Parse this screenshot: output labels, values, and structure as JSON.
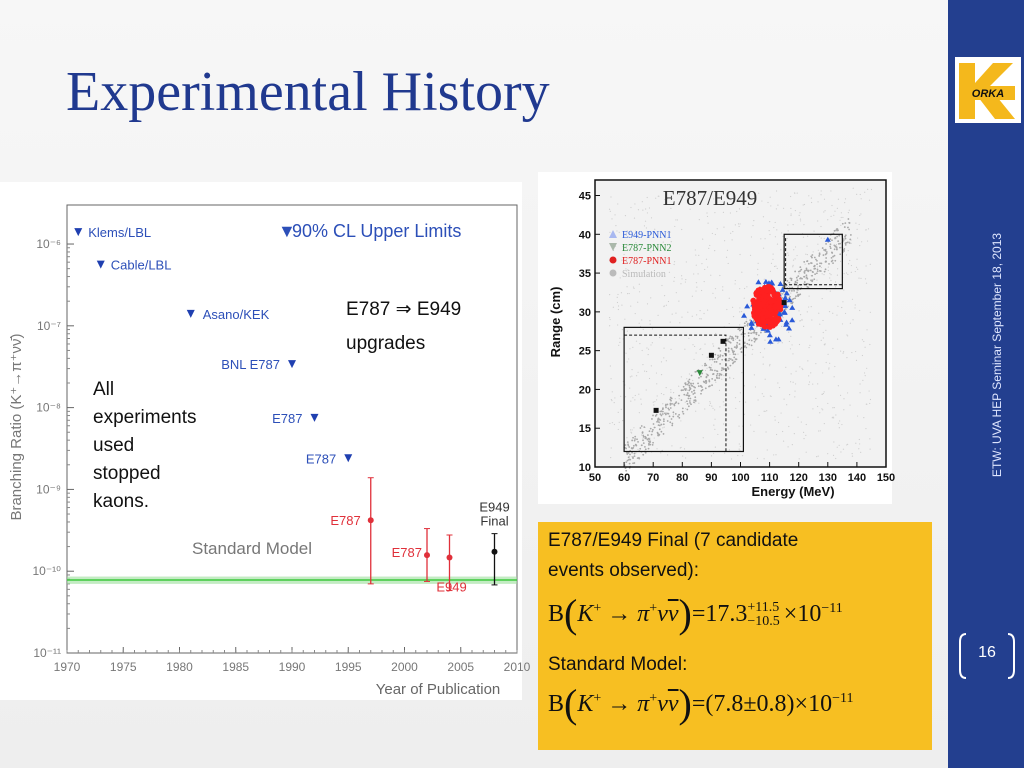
{
  "slide": {
    "title": "Experimental History",
    "sidebar_text": "ETW: UVA HEP Seminar     September 18, 2013",
    "page_number": "16",
    "logo_text": "ORKA"
  },
  "left_plot": {
    "ylabel": "Branching Ratio (K⁺→π⁺νν̄)",
    "xlabel": "Year of Publication",
    "legend_label": "90% CL Upper Limits",
    "sm_label": "Standard Model",
    "upgrade_line1": "E787 ⇒ E949",
    "upgrade_line2": "upgrades",
    "note_lines": [
      "All",
      "experiments",
      "used",
      "stopped",
      "kaons."
    ],
    "upper_limit_labels": [
      "Klems/LBL",
      "Cable/LBL",
      "Asano/KEK",
      "BNL E787",
      "E787",
      "E787"
    ],
    "measurement_labels": [
      "E787",
      "E787",
      "E949",
      "E949",
      "Final"
    ],
    "x_ticks": [
      "1970",
      "1975",
      "1980",
      "1985",
      "1990",
      "1995",
      "2000",
      "2005",
      "2010"
    ],
    "y_ticks": [
      "10⁻⁶",
      "10⁻⁷",
      "10⁻⁸",
      "10⁻⁹",
      "10⁻¹⁰",
      "10⁻¹¹"
    ]
  },
  "right_plot": {
    "title": "E787/E949",
    "xlabel": "Energy (MeV)",
    "ylabel": "Range (cm)",
    "legend": [
      "E949-PNN1",
      "E787-PNN2",
      "E787-PNN1",
      "Simulation"
    ],
    "x_ticks": [
      "50",
      "60",
      "70",
      "80",
      "90",
      "100",
      "110",
      "120",
      "130",
      "140",
      "150"
    ],
    "y_ticks": [
      "10",
      "15",
      "20",
      "25",
      "30",
      "35",
      "40",
      "45"
    ]
  },
  "result": {
    "line1": "E787/E949 Final (7 candidate",
    "line2": "events observed):",
    "eq1_value": "17.3",
    "eq1_up": "+11.5",
    "eq1_down": "−10.5",
    "eq1_exp": "×10",
    "eq1_pow": "−11",
    "sm_title": "Standard Model:",
    "eq2_value": "(7.8±0.8)",
    "eq2_exp": "×10",
    "eq2_pow": "−11"
  },
  "chart_data": [
    {
      "type": "scatter",
      "title": "",
      "xlabel": "Year of Publication",
      "ylabel": "Branching Ratio (K⁺→π⁺νν̄)",
      "y_scale": "log",
      "xlim": [
        1970,
        2010
      ],
      "ylim": [
        1e-11,
        3e-06
      ],
      "upper_limits": [
        {
          "label": "Klems/LBL",
          "x": 1971,
          "y": 1.4e-06
        },
        {
          "label": "Cable/LBL",
          "x": 1973,
          "y": 5.6e-07
        },
        {
          "label": "Asano/KEK",
          "x": 1981,
          "y": 1.4e-07
        },
        {
          "label": "BNL E787",
          "x": 1990,
          "y": 3.4e-08
        },
        {
          "label": "E787",
          "x": 1992,
          "y": 7.5e-09
        },
        {
          "label": "E787",
          "x": 1995,
          "y": 2.4e-09
        }
      ],
      "measurements": [
        {
          "label": "E787",
          "x": 1997,
          "y": 4.2e-10,
          "err_up": 9.7e-10,
          "err_down": 3.5e-10,
          "color": "#e0303a"
        },
        {
          "label": "E787",
          "x": 2002,
          "y": 1.57e-10,
          "err_up": 1.75e-10,
          "err_down": 8.2e-11,
          "color": "#e0303a"
        },
        {
          "label": "E949",
          "x": 2004,
          "y": 1.47e-10,
          "err_up": 1.3e-10,
          "err_down": 8.9e-11,
          "color": "#e0303a"
        },
        {
          "label": "E949 Final",
          "x": 2008,
          "y": 1.73e-10,
          "err_up": 1.15e-10,
          "err_down": 1.05e-10,
          "color": "#111111"
        }
      ],
      "standard_model": {
        "y": 7.8e-11,
        "band": [
          7e-11,
          8.6e-11
        ],
        "color": "#3cc83c"
      }
    },
    {
      "type": "scatter",
      "title": "E787/E949",
      "xlabel": "Energy (MeV)",
      "ylabel": "Range (cm)",
      "xlim": [
        50,
        150
      ],
      "ylim": [
        10,
        47
      ],
      "series": [
        {
          "name": "E949-PNN1",
          "color": "#2a5ad8",
          "points": [
            [
              130,
              39.3
            ]
          ]
        },
        {
          "name": "E787-PNN2",
          "color": "#2a8a3a",
          "points": [
            [
              86,
              22.1
            ]
          ]
        },
        {
          "name": "E787-PNN1",
          "color": "#e02020",
          "points": [
            [
              108,
              30.5
            ]
          ]
        },
        {
          "name": "Simulation",
          "color": "#b8b8b8",
          "points": []
        }
      ],
      "black_points": [
        [
          71,
          17.3
        ],
        [
          90,
          24.4
        ],
        [
          94,
          26.2
        ],
        [
          115,
          31.2
        ]
      ]
    }
  ]
}
